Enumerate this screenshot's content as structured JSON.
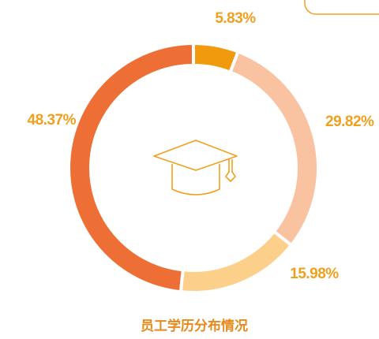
{
  "chart_data": {
    "type": "donut",
    "title": "员工学历分布情况",
    "values": [
      5.83,
      29.82,
      15.98,
      48.37
    ],
    "value_labels": [
      "5.83%",
      "29.82%",
      "15.98%",
      "48.37%"
    ],
    "colors": [
      "#f29a0e",
      "#f9c3a2",
      "#fcd08a",
      "#ee6f35"
    ]
  }
}
